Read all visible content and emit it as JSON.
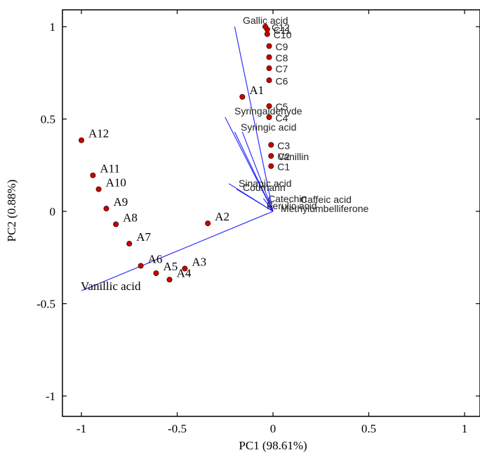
{
  "chart_data": {
    "type": "scatter",
    "xlabel": "PC1 (98.61%)",
    "ylabel": "PC2 (0.88%)",
    "xlim": [
      -1.1,
      1.1
    ],
    "ylim": [
      -1.1,
      1.1
    ],
    "xticks": [
      "-1",
      "-0.5",
      "0",
      "0.5",
      "1"
    ],
    "yticks": [
      "1",
      "0.5",
      "0",
      "-0.5",
      "-1"
    ],
    "grid": false,
    "point_color": "#cc0000",
    "vector_color": "#1f1fff",
    "points": [
      {
        "label": "A1",
        "x": -0.16,
        "y": 0.62
      },
      {
        "label": "A2",
        "x": -0.34,
        "y": -0.065
      },
      {
        "label": "A3",
        "x": -0.46,
        "y": -0.31
      },
      {
        "label": "A4",
        "x": -0.54,
        "y": -0.37
      },
      {
        "label": "A5",
        "x": -0.61,
        "y": -0.335
      },
      {
        "label": "A6",
        "x": -0.69,
        "y": -0.295
      },
      {
        "label": "A7",
        "x": -0.75,
        "y": -0.175
      },
      {
        "label": "A8",
        "x": -0.82,
        "y": -0.07
      },
      {
        "label": "A9",
        "x": -0.87,
        "y": 0.015
      },
      {
        "label": "A10",
        "x": -0.91,
        "y": 0.12
      },
      {
        "label": "A11",
        "x": -0.94,
        "y": 0.195
      },
      {
        "label": "A12",
        "x": -1.0,
        "y": 0.385
      },
      {
        "label": "C1",
        "x": -0.01,
        "y": 0.245
      },
      {
        "label": "C2",
        "x": -0.01,
        "y": 0.3
      },
      {
        "label": "C3",
        "x": -0.01,
        "y": 0.36
      },
      {
        "label": "C4",
        "x": -0.02,
        "y": 0.51
      },
      {
        "label": "C5",
        "x": -0.02,
        "y": 0.57
      },
      {
        "label": "C6",
        "x": -0.02,
        "y": 0.71
      },
      {
        "label": "C7",
        "x": -0.02,
        "y": 0.775
      },
      {
        "label": "C8",
        "x": -0.02,
        "y": 0.835
      },
      {
        "label": "C9",
        "x": -0.02,
        "y": 0.895
      },
      {
        "label": "C10",
        "x": -0.03,
        "y": 0.96
      },
      {
        "label": "C11",
        "x": -0.03,
        "y": 0.985
      },
      {
        "label": "C12",
        "x": -0.04,
        "y": 1.0
      }
    ],
    "vectors": [
      {
        "label": "Gallic acid",
        "x": -0.2,
        "y": 1.0
      },
      {
        "label": "Syringaldehyde",
        "x": -0.25,
        "y": 0.51
      },
      {
        "label": "Syringic acid",
        "x": -0.16,
        "y": 0.43
      },
      {
        "label": "Vanillin",
        "x": -0.2,
        "y": 0.43
      },
      {
        "label": "Sinapic acid",
        "x": -0.23,
        "y": 0.15
      },
      {
        "label": "Coumarin",
        "x": -0.19,
        "y": 0.12
      },
      {
        "label": "Catechin",
        "x": -0.05,
        "y": 0.07
      },
      {
        "label": "Caffeic acid",
        "x": -0.02,
        "y": 0.05
      },
      {
        "label": "Ferulic acid",
        "x": -0.03,
        "y": 0.035
      },
      {
        "label": "Methylumbelliferone",
        "x": -0.01,
        "y": 0.02
      },
      {
        "label": "Vanillic acid",
        "x": -1.0,
        "y": -0.43
      }
    ]
  },
  "vector_label_texts": {
    "gallic": "Gallic acid",
    "syringaldehyde": "Syringaldehyde",
    "syringic": "Syringic acid",
    "vanillin": "Vanillin",
    "sinapic": "Sinapic acid",
    "coumarin": "Coumarin",
    "catechin": "Catechin",
    "caffeic": "Caffeic acid",
    "ferulic": "Ferulic acid",
    "methyl": "Methylumbelliferone",
    "vanillic": "Vanillic acid"
  }
}
